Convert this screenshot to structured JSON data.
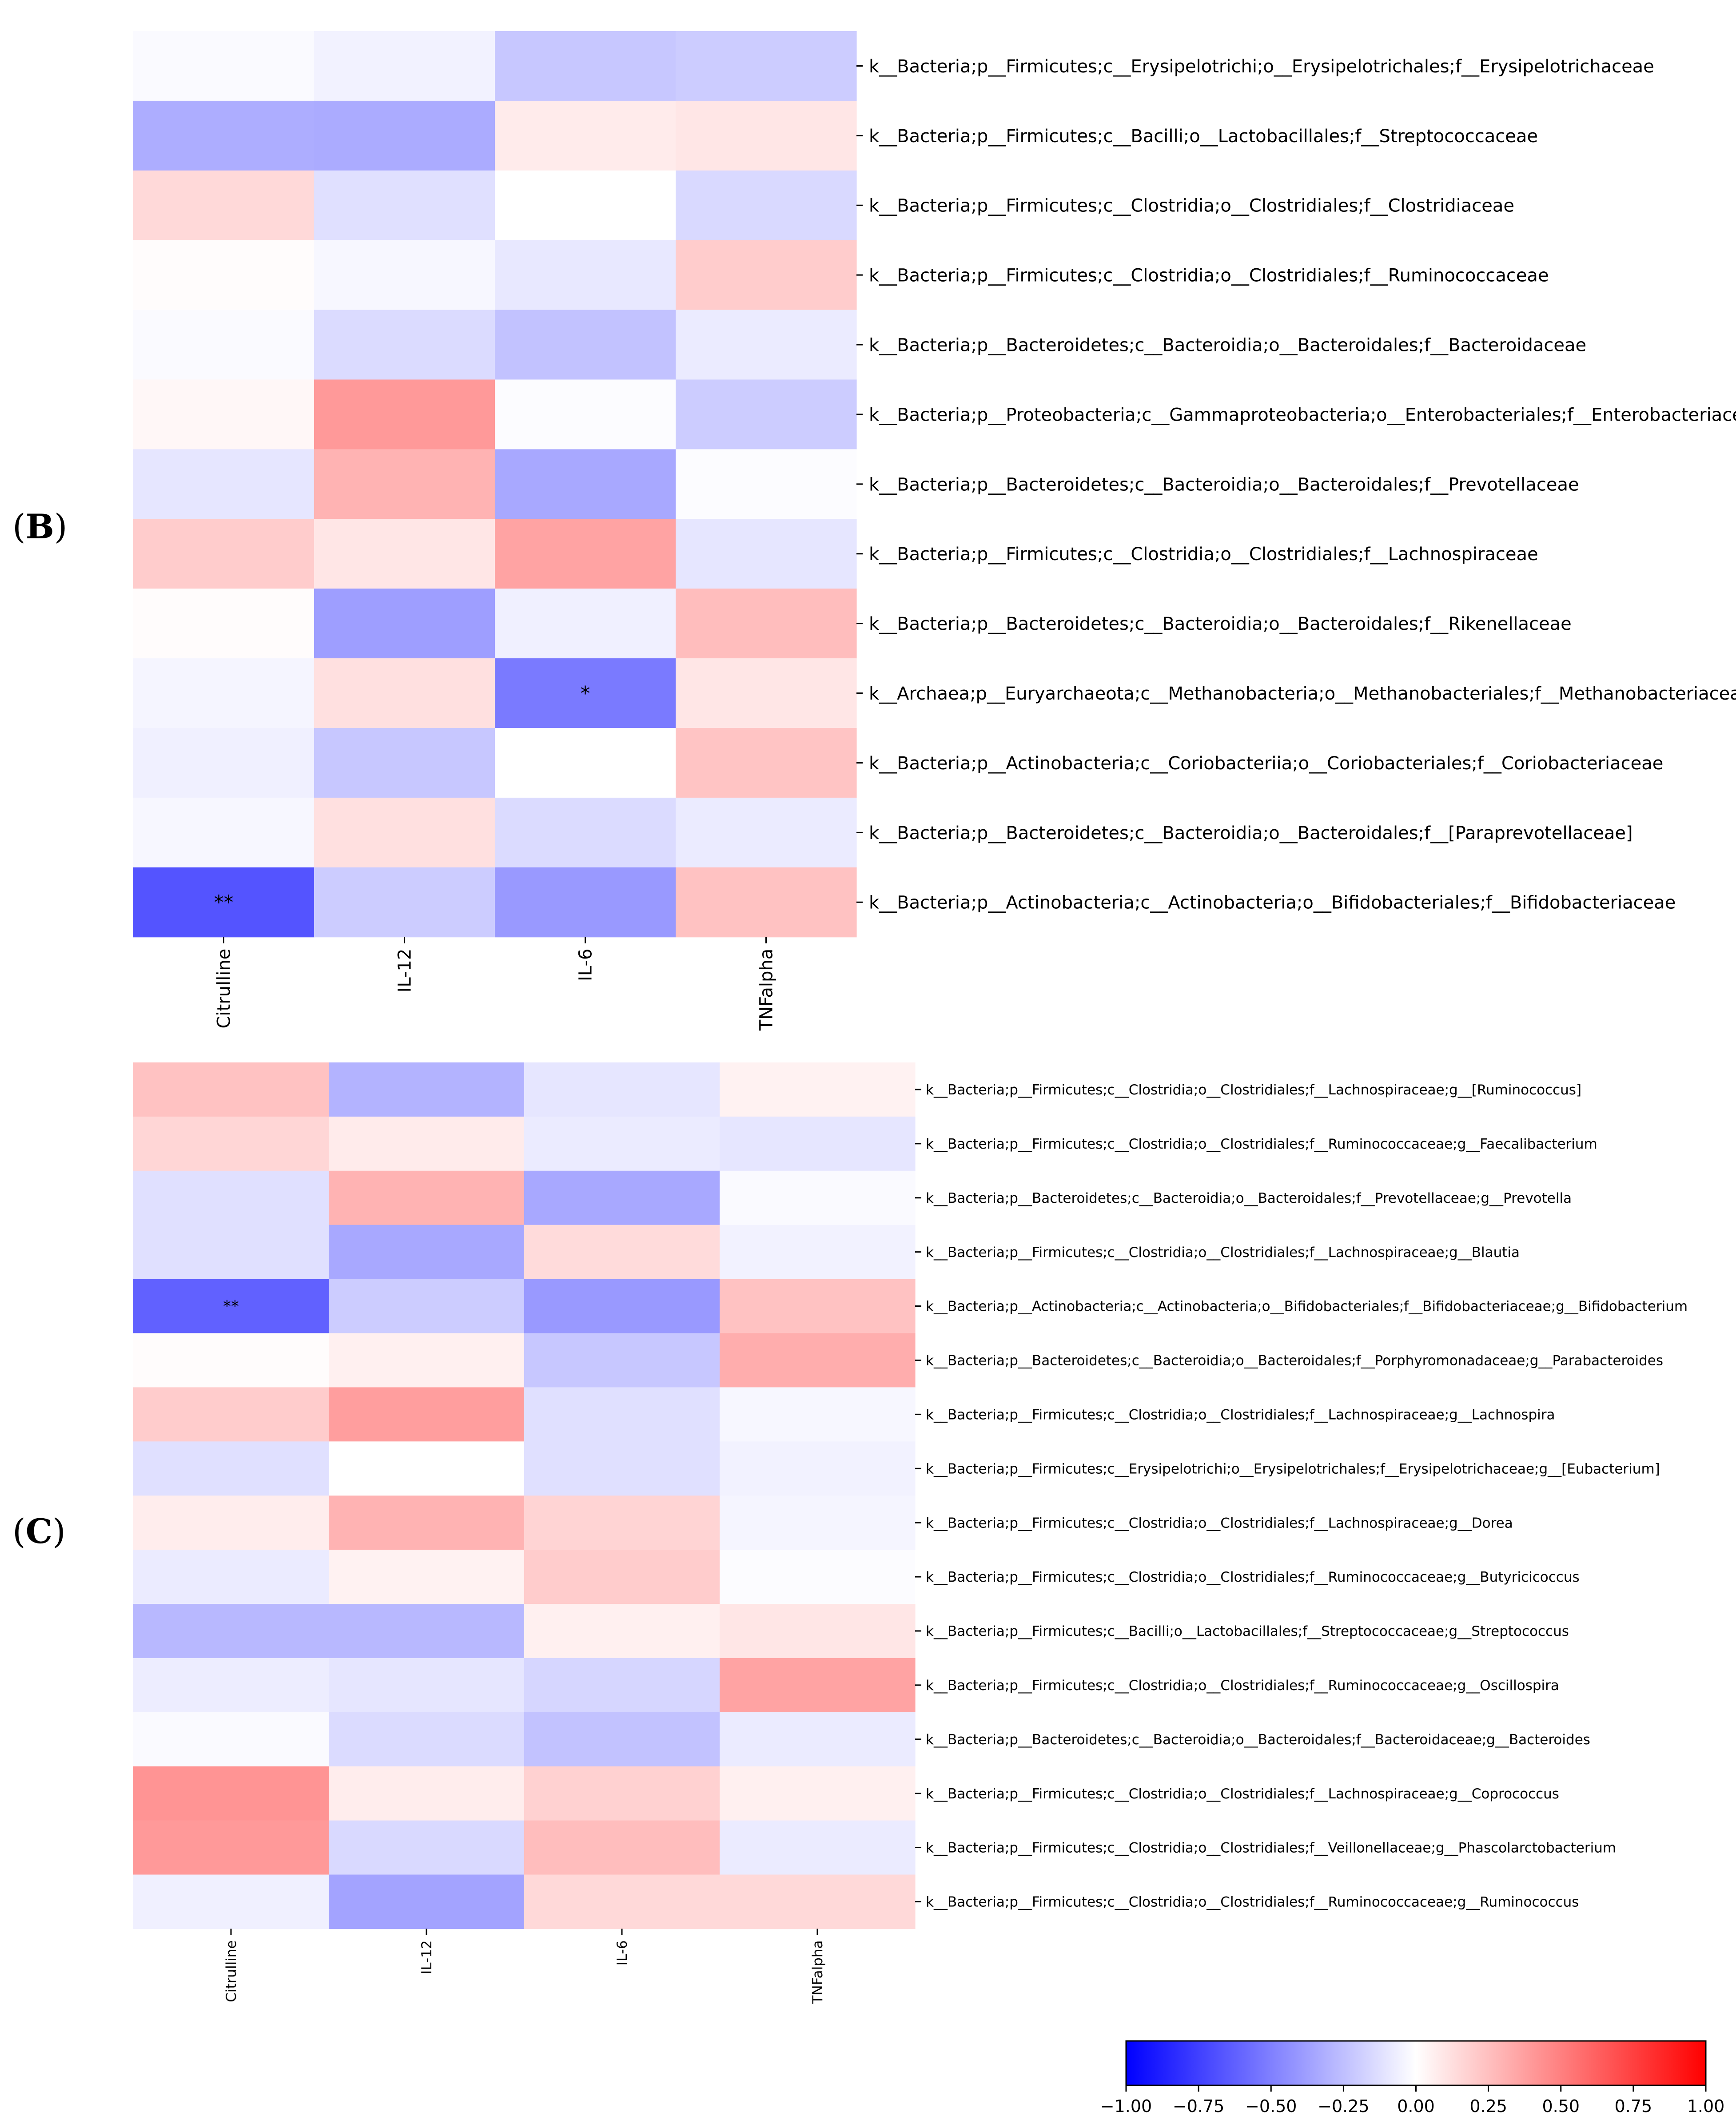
{
  "chart_data": [
    {
      "type": "heatmap",
      "panel_label": "B",
      "columns": [
        "Citrulline",
        "IL-12",
        "IL-6",
        "TNFalpha"
      ],
      "rows": [
        "k__Bacteria;p__Firmicutes;c__Erysipelotrichi;o__Erysipelotrichales;f__Erysipelotrichaceae",
        "k__Bacteria;p__Firmicutes;c__Bacilli;o__Lactobacillales;f__Streptococcaceae",
        "k__Bacteria;p__Firmicutes;c__Clostridia;o__Clostridiales;f__Clostridiaceae",
        "k__Bacteria;p__Firmicutes;c__Clostridia;o__Clostridiales;f__Ruminococcaceae",
        "k__Bacteria;p__Bacteroidetes;c__Bacteroidia;o__Bacteroidales;f__Bacteroidaceae",
        "k__Bacteria;p__Proteobacteria;c__Gammaproteobacteria;o__Enterobacteriales;f__Enterobacteriaceae",
        "k__Bacteria;p__Bacteroidetes;c__Bacteroidia;o__Bacteroidales;f__Prevotellaceae",
        "k__Bacteria;p__Firmicutes;c__Clostridia;o__Clostridiales;f__Lachnospiraceae",
        "k__Bacteria;p__Bacteroidetes;c__Bacteroidia;o__Bacteroidales;f__Rikenellaceae",
        "k__Archaea;p__Euryarchaeota;c__Methanobacteria;o__Methanobacteriales;f__Methanobacteriaceae",
        "k__Bacteria;p__Actinobacteria;c__Coriobacteriia;o__Coriobacteriales;f__Coriobacteriaceae",
        "k__Bacteria;p__Bacteroidetes;c__Bacteroidia;o__Bacteroidales;f__[Paraprevotellaceae]",
        "k__Bacteria;p__Actinobacteria;c__Actinobacteria;o__Bifidobacteriales;f__Bifidobacteriaceae"
      ],
      "values": [
        [
          -0.02,
          -0.05,
          -0.22,
          -0.2
        ],
        [
          -0.32,
          -0.33,
          0.08,
          0.1
        ],
        [
          0.15,
          -0.12,
          0.0,
          -0.15
        ],
        [
          0.01,
          -0.03,
          -0.09,
          0.2
        ],
        [
          -0.02,
          -0.14,
          -0.24,
          -0.08
        ],
        [
          0.03,
          0.4,
          -0.01,
          -0.2
        ],
        [
          -0.1,
          0.3,
          -0.34,
          -0.01
        ],
        [
          0.2,
          0.1,
          0.36,
          -0.1
        ],
        [
          0.01,
          -0.38,
          -0.06,
          0.26
        ],
        [
          -0.04,
          0.12,
          -0.52,
          0.1
        ],
        [
          -0.06,
          -0.22,
          0.0,
          0.23
        ],
        [
          -0.03,
          0.12,
          -0.14,
          -0.08
        ],
        [
          -0.67,
          -0.2,
          -0.4,
          0.24
        ]
      ],
      "annotations": [
        {
          "row": 9,
          "col": 2,
          "text": "*"
        },
        {
          "row": 12,
          "col": 0,
          "text": "**"
        }
      ]
    },
    {
      "type": "heatmap",
      "panel_label": "C",
      "columns": [
        "Citrulline",
        "IL-12",
        "IL-6",
        "TNFalpha"
      ],
      "rows": [
        "k__Bacteria;p__Firmicutes;c__Clostridia;o__Clostridiales;f__Lachnospiraceae;g__[Ruminococcus]",
        "k__Bacteria;p__Firmicutes;c__Clostridia;o__Clostridiales;f__Ruminococcaceae;g__Faecalibacterium",
        "k__Bacteria;p__Bacteroidetes;c__Bacteroidia;o__Bacteroidales;f__Prevotellaceae;g__Prevotella",
        "k__Bacteria;p__Firmicutes;c__Clostridia;o__Clostridiales;f__Lachnospiraceae;g__Blautia",
        "k__Bacteria;p__Actinobacteria;c__Actinobacteria;o__Bifidobacteriales;f__Bifidobacteriaceae;g__Bifidobacterium",
        "k__Bacteria;p__Bacteroidetes;c__Bacteroidia;o__Bacteroidales;f__Porphyromonadaceae;g__Parabacteroides",
        "k__Bacteria;p__Firmicutes;c__Clostridia;o__Clostridiales;f__Lachnospiraceae;g__Lachnospira",
        "k__Bacteria;p__Firmicutes;c__Erysipelotrichi;o__Erysipelotrichales;f__Erysipelotrichaceae;g__[Eubacterium]",
        "k__Bacteria;p__Firmicutes;c__Clostridia;o__Clostridiales;f__Lachnospiraceae;g__Dorea",
        "k__Bacteria;p__Firmicutes;c__Clostridia;o__Clostridiales;f__Ruminococcaceae;g__Butyricicoccus",
        "k__Bacteria;p__Firmicutes;c__Bacilli;o__Lactobacillales;f__Streptococcaceae;g__Streptococcus",
        "k__Bacteria;p__Firmicutes;c__Clostridia;o__Clostridiales;f__Ruminococcaceae;g__Oscillospira",
        "k__Bacteria;p__Bacteroidetes;c__Bacteroidia;o__Bacteroidales;f__Bacteroidaceae;g__Bacteroides",
        "k__Bacteria;p__Firmicutes;c__Clostridia;o__Clostridiales;f__Lachnospiraceae;g__Coprococcus",
        "k__Bacteria;p__Firmicutes;c__Clostridia;o__Clostridiales;f__Veillonellaceae;g__Phascolarctobacterium",
        "k__Bacteria;p__Firmicutes;c__Clostridia;o__Clostridiales;f__Ruminococcaceae;g__Ruminococcus"
      ],
      "values": [
        [
          0.24,
          -0.3,
          -0.1,
          0.05
        ],
        [
          0.16,
          0.08,
          -0.08,
          -0.1
        ],
        [
          -0.12,
          0.3,
          -0.34,
          -0.02
        ],
        [
          -0.12,
          -0.34,
          0.14,
          -0.05
        ],
        [
          -0.62,
          -0.2,
          -0.4,
          0.24
        ],
        [
          0.01,
          0.06,
          -0.22,
          0.32
        ],
        [
          0.2,
          0.38,
          -0.12,
          -0.03
        ],
        [
          -0.12,
          0.0,
          -0.12,
          -0.05
        ],
        [
          0.07,
          0.3,
          0.17,
          -0.04
        ],
        [
          -0.08,
          0.05,
          0.2,
          -0.01
        ],
        [
          -0.28,
          -0.28,
          0.06,
          0.1
        ],
        [
          -0.07,
          -0.1,
          -0.16,
          0.36
        ],
        [
          -0.02,
          -0.14,
          -0.24,
          -0.08
        ],
        [
          0.42,
          0.07,
          0.18,
          0.06
        ],
        [
          0.4,
          -0.15,
          0.26,
          -0.08
        ],
        [
          -0.06,
          -0.36,
          0.15,
          0.15
        ]
      ],
      "annotations": [
        {
          "row": 4,
          "col": 0,
          "text": "**"
        }
      ]
    }
  ],
  "colorbar": {
    "cmap": "bwr",
    "range": [
      -1.0,
      1.0
    ],
    "ticks": [
      "−1.00",
      "−0.75",
      "−0.50",
      "−0.25",
      "0.00",
      "0.25",
      "0.50",
      "0.75",
      "1.00"
    ],
    "tick_values": [
      -1.0,
      -0.75,
      -0.5,
      -0.25,
      0.0,
      0.25,
      0.5,
      0.75,
      1.0
    ]
  }
}
